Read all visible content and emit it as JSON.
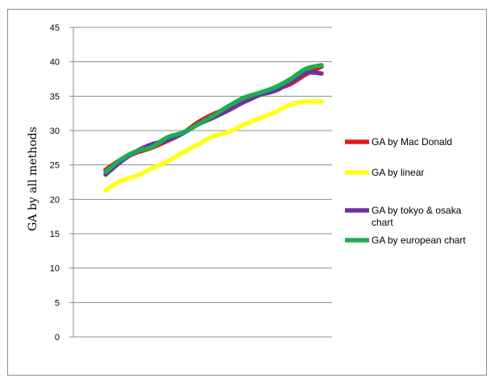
{
  "chart_data": {
    "type": "line",
    "title": "",
    "xlabel": "",
    "ylabel": "GA by all methods",
    "ylim": [
      0,
      45
    ],
    "yticks": [
      0,
      5,
      10,
      15,
      20,
      25,
      30,
      35,
      40,
      45
    ],
    "grid": "horizontal",
    "legend_position": "right",
    "x": [
      1,
      2,
      3,
      4,
      5,
      6,
      7,
      8,
      9,
      10,
      11,
      12,
      13,
      14,
      15
    ],
    "series": [
      {
        "name": "GA by Mac Donald",
        "color": "#e8161b",
        "values": [
          24.3,
          25.8,
          26.8,
          27.5,
          28.5,
          29.6,
          31.2,
          32.4,
          33.3,
          34.2,
          35.2,
          36.0,
          36.8,
          38.2,
          39.3
        ]
      },
      {
        "name": "GA by linear",
        "color": "#ffff1a",
        "values": [
          21.3,
          22.7,
          23.4,
          24.5,
          25.5,
          26.8,
          28.0,
          29.2,
          29.8,
          30.9,
          31.8,
          32.7,
          33.8,
          34.2,
          34.2
        ]
      },
      {
        "name": "GA by tokyo & osaka chart",
        "color": "#7030a0",
        "values": [
          23.6,
          25.5,
          27.0,
          28.0,
          28.6,
          29.6,
          30.9,
          31.9,
          33.0,
          34.2,
          35.2,
          35.8,
          37.0,
          38.4,
          38.3
        ]
      },
      {
        "name": "GA by european chart",
        "color": "#1aae52",
        "values": [
          24.0,
          25.8,
          27.0,
          27.6,
          29.0,
          29.7,
          30.9,
          32.2,
          33.6,
          34.8,
          35.5,
          36.3,
          37.5,
          39.0,
          39.5
        ]
      }
    ],
    "legend_labels": [
      [
        "GA by Mac Donald"
      ],
      [
        "GA by linear"
      ],
      [
        "GA by tokyo & osaka",
        "chart"
      ],
      [
        "GA by european chart"
      ]
    ]
  }
}
